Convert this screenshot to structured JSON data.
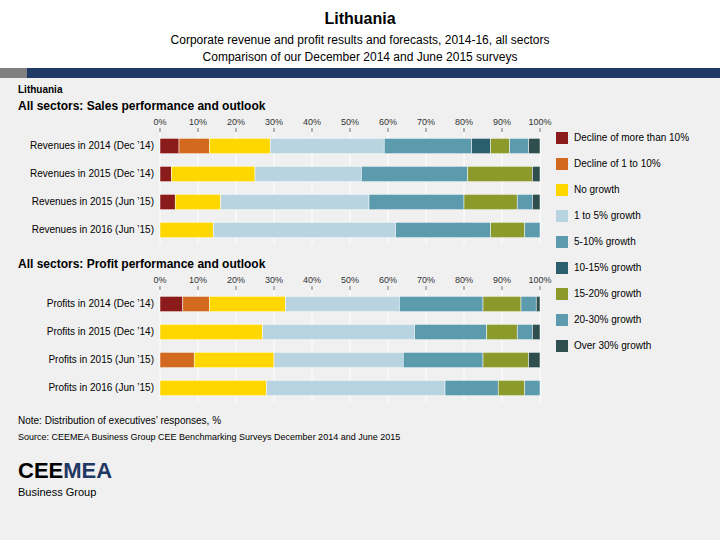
{
  "chart_data": [
    {
      "type": "bar",
      "orientation": "horizontal",
      "stacked": true,
      "grid": true,
      "legend": "right",
      "title": "All sectors:  Sales performance and outlook",
      "annotations": [
        "Lithuania",
        "Corporate revenue and profit results and forecasts, 2014-16, all sectors",
        "Comparison of our December 2014 and June 2015 surveys",
        "Lithuania"
      ],
      "categories": [
        "Revenues in 2014 (Dec ’14)",
        "Revenues in 2015 (Dec ’14)",
        "Revenues in 2015 (Jun ’15)",
        "Revenues in 2016 (Jun ’15)"
      ],
      "xlim": [
        0,
        100
      ],
      "xticks": [
        {
          "value": 0,
          "label": "0%"
        },
        {
          "value": 10,
          "label": "10%"
        },
        {
          "value": 20,
          "label": "20%"
        },
        {
          "value": 30,
          "label": "30%"
        },
        {
          "value": 40,
          "label": "40%"
        },
        {
          "value": 50,
          "label": "50%"
        },
        {
          "value": 60,
          "label": "60%"
        },
        {
          "value": 70,
          "label": "70%"
        },
        {
          "value": 80,
          "label": "80%"
        },
        {
          "value": 90,
          "label": "90%"
        },
        {
          "value": 100,
          "label": "100%"
        }
      ],
      "series": [
        {
          "name": "Decline of more than 10%",
          "color": "#8B1A1A",
          "values": [
            5,
            3,
            4,
            0
          ]
        },
        {
          "name": "Decline of 1 to 10%",
          "color": "#D2691E",
          "values": [
            8,
            0,
            0,
            0
          ]
        },
        {
          "name": "No growth",
          "color": "#FFD700",
          "values": [
            16,
            22,
            12,
            14
          ]
        },
        {
          "name": "1 to 5% growth",
          "color": "#B8D4E0",
          "values": [
            30,
            28,
            39,
            48
          ]
        },
        {
          "name": "5-10% growth",
          "color": "#5B9BAD",
          "values": [
            23,
            28,
            25,
            25
          ]
        },
        {
          "name": "10-15% growth",
          "color": "#2C5F6E",
          "values": [
            5,
            0,
            0,
            0
          ]
        },
        {
          "name": "15-20% growth",
          "color": "#8B9A2A",
          "values": [
            5,
            17,
            14,
            9
          ]
        },
        {
          "name": "20-30% growth",
          "color": "#5B9BAD",
          "values": [
            5,
            0,
            4,
            4
          ]
        },
        {
          "name": "Over 30% growth",
          "color": "#2F4F4F",
          "values": [
            3,
            2,
            2,
            0
          ]
        }
      ]
    },
    {
      "type": "bar",
      "orientation": "horizontal",
      "stacked": true,
      "grid": true,
      "title": "All sectors: Profit performance and outlook",
      "annotations": [
        "Note: Distribution of executives’ responses, %",
        "Source: CEEMEA Business Group CEE Benchmarking Surveys December 2014 and June 2015",
        "CEE",
        "MEA",
        "Business Group"
      ],
      "categories": [
        "Profits in 2014 (Dec ’14)",
        "Profits in 2015 (Dec ’14)",
        "Profits in 2015 (Jun ’15)",
        "Profits in 2016 (Jun ’15)"
      ],
      "xlim": [
        0,
        100
      ],
      "xticks": [
        {
          "value": 0,
          "label": "0%"
        },
        {
          "value": 10,
          "label": "10%"
        },
        {
          "value": 20,
          "label": "20%"
        },
        {
          "value": 30,
          "label": "30%"
        },
        {
          "value": 40,
          "label": "40%"
        },
        {
          "value": 50,
          "label": "50%"
        },
        {
          "value": 60,
          "label": "60%"
        },
        {
          "value": 70,
          "label": "70%"
        },
        {
          "value": 80,
          "label": "80%"
        },
        {
          "value": 90,
          "label": "90%"
        },
        {
          "value": 100,
          "label": "100%"
        }
      ],
      "series": [
        {
          "color": "#8B1A1A",
          "values": [
            6,
            0,
            0,
            0
          ]
        },
        {
          "color": "#D2691E",
          "values": [
            7,
            0,
            9,
            0
          ]
        },
        {
          "color": "#FFD700",
          "values": [
            20,
            27,
            21,
            28
          ]
        },
        {
          "color": "#B8D4E0",
          "values": [
            30,
            40,
            34,
            47
          ]
        },
        {
          "color": "#5B9BAD",
          "values": [
            22,
            19,
            21,
            14
          ]
        },
        {
          "color": "#2C5F6E",
          "values": [
            0,
            0,
            0,
            0
          ]
        },
        {
          "color": "#8B9A2A",
          "values": [
            10,
            8,
            12,
            7
          ]
        },
        {
          "color": "#5B9BAD",
          "values": [
            4,
            4,
            0,
            4
          ]
        },
        {
          "color": "#2F4F4F",
          "values": [
            1,
            2,
            3,
            0
          ]
        }
      ]
    }
  ]
}
